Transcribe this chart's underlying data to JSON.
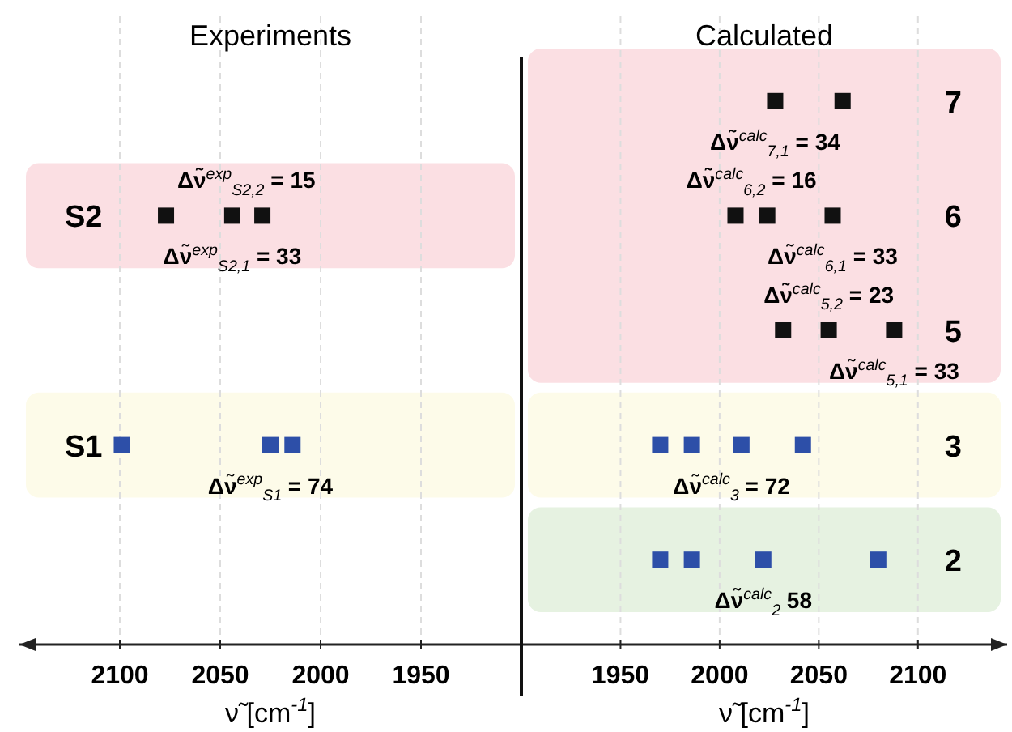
{
  "chart_data": [
    {
      "type": "scatter",
      "title": "Experiments",
      "xlabel": "ν̃ [cm$^{-1}$]",
      "orientation": "horizontal",
      "categories": [
        null,
        "S2",
        null,
        "S1",
        null
      ],
      "series": [
        {
          "values": [
            null,
            2077,
            null,
            2099,
            null
          ],
          "colors": [
            null,
            "#111111",
            null,
            "#2d4fa8",
            null
          ]
        },
        {
          "values": [
            null,
            2044,
            null,
            2025,
            null
          ],
          "colors": [
            null,
            "#111111",
            null,
            "#2d4fa8",
            null
          ]
        },
        {
          "values": [
            null,
            2029,
            null,
            2014,
            null
          ],
          "colors": [
            null,
            "#111111",
            null,
            "#2d4fa8",
            null
          ]
        }
      ],
      "xlim": [
        2150,
        1900
      ],
      "xticks": [
        2100,
        2050,
        2000,
        1950
      ],
      "grid": "x",
      "marker": "square",
      "bands": [
        {
          "axis": "y",
          "from": "S2",
          "to": "S2",
          "color": "#fbdfe3"
        },
        {
          "axis": "y",
          "from": "S1",
          "to": "S1",
          "color": "#fdfbe9"
        }
      ],
      "annotations": [
        {
          "text": "Δν̃$^{exp}$$_{S2,2}$ = 15",
          "x": 2037,
          "y": "S2"
        },
        {
          "text": "Δν̃$^{exp}$$_{S2,1}$ = 33",
          "x": 2044,
          "y": "S2"
        },
        {
          "text": "Δν̃$^{exp}$$_{S1}$ = 74",
          "x": 2025,
          "y": "S1"
        }
      ]
    },
    {
      "type": "scatter",
      "title": "Calculated",
      "xlabel": "ν̃ [cm$^{-1}$]",
      "orientation": "horizontal",
      "categories": [
        "7",
        "6",
        "5",
        "3",
        "2"
      ],
      "series": [
        {
          "values": [
            2028,
            2008,
            2032,
            1970,
            1970
          ],
          "colors": [
            "#111111",
            "#111111",
            "#111111",
            "#2d4fa8",
            "#2d4fa8"
          ]
        },
        {
          "values": [
            2062,
            2024,
            2055,
            1986,
            1986
          ],
          "colors": [
            "#111111",
            "#111111",
            "#111111",
            "#2d4fa8",
            "#2d4fa8"
          ]
        },
        {
          "values": [
            null,
            2057,
            2088,
            2011,
            2022
          ],
          "colors": [
            null,
            "#111111",
            "#111111",
            "#2d4fa8",
            "#2d4fa8"
          ]
        },
        {
          "values": [
            null,
            null,
            null,
            2042,
            2080
          ],
          "colors": [
            null,
            null,
            null,
            "#2d4fa8",
            "#2d4fa8"
          ]
        }
      ],
      "xlim": [
        1900,
        2145
      ],
      "xticks": [
        1950,
        2000,
        2050,
        2100
      ],
      "grid": "x",
      "marker": "square",
      "bands": [
        {
          "axis": "y",
          "from": "7",
          "to": "5",
          "color": "#fbdfe3"
        },
        {
          "axis": "y",
          "from": "3",
          "to": "3",
          "color": "#fdfbe9"
        },
        {
          "axis": "y",
          "from": "2",
          "to": "2",
          "color": "#e6f2e1"
        }
      ],
      "annotations": [
        {
          "text": "Δν̃$^{calc}$$_{7,1}$ = 34",
          "x": 2028,
          "y": "7"
        },
        {
          "text": "Δν̃$^{calc}$$_{6,2}$ = 16",
          "x": 2016,
          "y": "6"
        },
        {
          "text": "Δν̃$^{calc}$$_{6,1}$ = 33",
          "x": 2057,
          "y": "6"
        },
        {
          "text": "Δν̃$^{calc}$$_{5,2}$ = 23",
          "x": 2055,
          "y": "5"
        },
        {
          "text": "Δν̃$^{calc}$$_{5,1}$ = 33",
          "x": 2088,
          "y": "5"
        },
        {
          "text": "Δν̃$^{calc}$$_{3}$ = 72",
          "x": 2006,
          "y": "3"
        },
        {
          "text": "Δν̃$^{calc}$$_{2}$ 58",
          "x": 2022,
          "y": "2"
        }
      ]
    }
  ]
}
